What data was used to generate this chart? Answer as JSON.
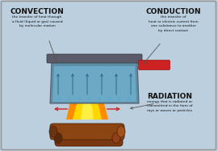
{
  "bg_color": "#bccfdf",
  "border_color": "#999999",
  "title_convection": "CONVECTION",
  "desc_convection": "the transfer of heat through\na fluid (liquid or gas) caused\nby molecular motion",
  "title_conduction": "CONDUCTION",
  "desc_conduction": "the transfer of\nheat or electric current from\none substance to another\nby direct contact",
  "title_radiation": "RADIATION",
  "desc_radiation": "energy that is radiated or\ntransmitted in the form of\nrays or waves or particles",
  "pot_body_color": "#5a8fa8",
  "pot_rim_color": "#5a5a6a",
  "pot_handle_color": "#cc2222",
  "log1_color": "#8B4513",
  "log2_color": "#7a3810",
  "log_dark": "#4a2008",
  "flame_yellow": "#FFD700",
  "flame_orange": "#FF8C00",
  "flame_red": "#FF4500",
  "radiation_arrow_color": "#cc2222",
  "text_color": "#111111",
  "water_color": "#7abcd8",
  "convection_bubble_color": "#4a9ab8",
  "arrow_color": "#555555"
}
